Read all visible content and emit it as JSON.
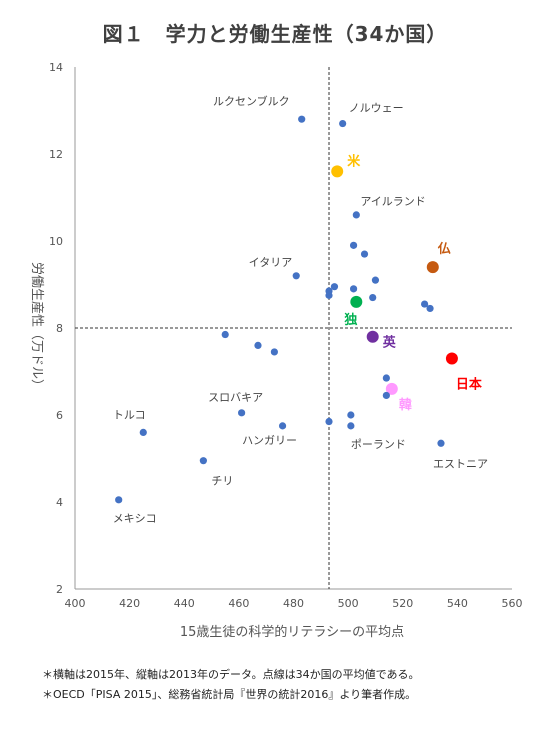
{
  "title": "図１　学力と労働生産性（34か国）",
  "chart_data": {
    "type": "scatter",
    "xlabel": "15歳生徒の科学的リテラシーの平均点",
    "ylabel": "労働生産性（万ドル）",
    "xlim": [
      400,
      560
    ],
    "ylim": [
      2,
      14
    ],
    "xticks": [
      400,
      420,
      440,
      460,
      480,
      500,
      520,
      540,
      560
    ],
    "yticks": [
      2,
      4,
      6,
      8,
      10,
      12,
      14
    ],
    "reference_lines": {
      "x": 493,
      "y": 8
    },
    "default_color": "#4472C4",
    "points": [
      {
        "x": 483,
        "y": 12.8,
        "label": "ルクセンブルク"
      },
      {
        "x": 498,
        "y": 12.7,
        "label": "ノルウェー"
      },
      {
        "x": 496,
        "y": 11.6,
        "label": "米",
        "color": "#FFC000",
        "highlight": true
      },
      {
        "x": 503,
        "y": 10.6,
        "label": "アイルランド"
      },
      {
        "x": 502,
        "y": 9.9
      },
      {
        "x": 506,
        "y": 9.7
      },
      {
        "x": 531,
        "y": 9.4,
        "label": "仏",
        "color": "#C55A11",
        "highlight": true
      },
      {
        "x": 481,
        "y": 9.2,
        "label": "イタリア"
      },
      {
        "x": 510,
        "y": 9.1
      },
      {
        "x": 502,
        "y": 8.9
      },
      {
        "x": 495,
        "y": 8.95
      },
      {
        "x": 493,
        "y": 8.85
      },
      {
        "x": 493,
        "y": 8.75
      },
      {
        "x": 509,
        "y": 8.7
      },
      {
        "x": 503,
        "y": 8.6,
        "label": "独",
        "color": "#00B050",
        "highlight": true
      },
      {
        "x": 528,
        "y": 8.55
      },
      {
        "x": 530,
        "y": 8.45
      },
      {
        "x": 455,
        "y": 7.85
      },
      {
        "x": 509,
        "y": 7.8,
        "label": "英",
        "color": "#7030A0",
        "highlight": true
      },
      {
        "x": 467,
        "y": 7.6
      },
      {
        "x": 473,
        "y": 7.45
      },
      {
        "x": 538,
        "y": 7.3,
        "label": "日本",
        "color": "#FF0000",
        "highlight": true
      },
      {
        "x": 514,
        "y": 6.85
      },
      {
        "x": 516,
        "y": 6.6,
        "label": "韓",
        "color": "#FF99FF",
        "highlight": true
      },
      {
        "x": 514,
        "y": 6.45
      },
      {
        "x": 461,
        "y": 6.05,
        "label": "スロバキア"
      },
      {
        "x": 501,
        "y": 6.0
      },
      {
        "x": 493,
        "y": 5.85
      },
      {
        "x": 476,
        "y": 5.75,
        "label": "ハンガリー"
      },
      {
        "x": 501,
        "y": 5.75,
        "label": "ポーランド"
      },
      {
        "x": 425,
        "y": 5.6,
        "label": "トルコ"
      },
      {
        "x": 534,
        "y": 5.35,
        "label": "エストニア"
      },
      {
        "x": 447,
        "y": 4.95,
        "label": "チリ"
      },
      {
        "x": 416,
        "y": 4.05,
        "label": "メキシコ"
      }
    ]
  },
  "notes": [
    "＊横軸は2015年、縦軸は2013年のデータ。点線は34か国の平均値である。",
    "＊OECD「PISA 2015」、総務省統計局『世界の統計2016』より筆者作成。"
  ]
}
